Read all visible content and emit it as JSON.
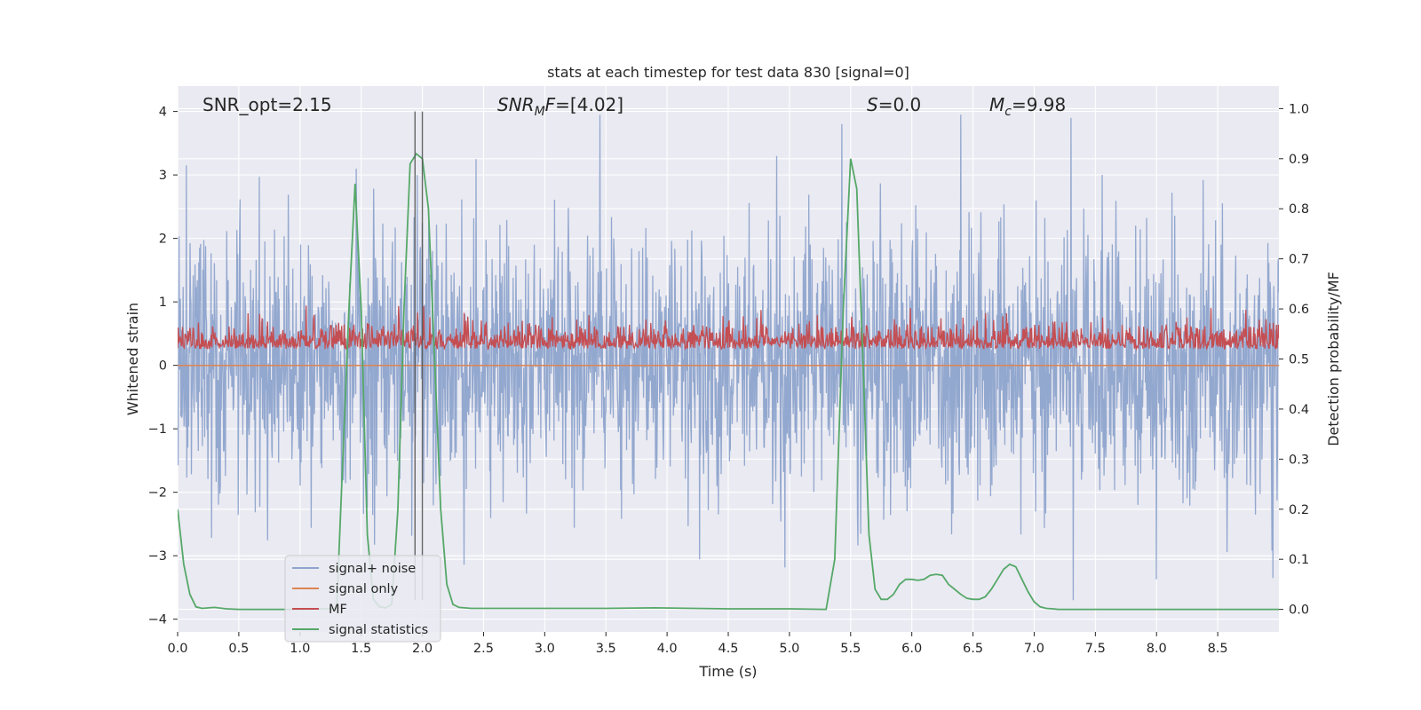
{
  "chart_data": {
    "type": "line",
    "title": "stats at each timestep for test data 830 [signal=0]",
    "xlabel": "Time (s)",
    "ylabel": "Whitened strain",
    "y2label": "Detection probability/MF",
    "xlim": [
      0.0,
      9.0
    ],
    "ylim": [
      -4.2,
      4.4
    ],
    "y2lim": [
      -0.045,
      1.045
    ],
    "x_ticks": [
      "0.0",
      "0.5",
      "1.0",
      "1.5",
      "2.0",
      "2.5",
      "3.0",
      "3.5",
      "4.0",
      "4.5",
      "5.0",
      "5.5",
      "6.0",
      "6.5",
      "7.0",
      "7.5",
      "8.0",
      "8.5"
    ],
    "y_ticks": [
      "−4",
      "−3",
      "−2",
      "−1",
      "0",
      "1",
      "2",
      "3",
      "4"
    ],
    "y2_ticks": [
      "0.0",
      "0.1",
      "0.2",
      "0.3",
      "0.4",
      "0.5",
      "0.6",
      "0.7",
      "0.8",
      "0.9",
      "1.0"
    ],
    "grid": true,
    "legend_position": "lower-left",
    "annotations": {
      "snr_opt": "SNR_opt=2.15",
      "snr_mf_base": "SNR",
      "snr_mf_sub": "M",
      "snr_mf_rest": "F=[4.02]",
      "s_var": "S",
      "s_val": "=0.0",
      "mc_var": "M",
      "mc_sub": "c",
      "mc_val": "=9.98"
    },
    "vertical_markers_x": [
      1.94,
      2.0
    ],
    "series": [
      {
        "name": "signal+ noise",
        "color": "#8ea4cc",
        "axis": "left",
        "description": "dense whitened strain noise, amplitude mostly within ±2.5",
        "peaks": [
          {
            "x": 0.07,
            "y": 3.15
          },
          {
            "x": 1.46,
            "y": 3.1
          },
          {
            "x": 1.96,
            "y": 3.0
          },
          {
            "x": 2.44,
            "y": 3.25
          },
          {
            "x": 3.45,
            "y": 3.95
          },
          {
            "x": 5.43,
            "y": 3.8
          },
          {
            "x": 6.4,
            "y": 3.95
          },
          {
            "x": 7.3,
            "y": 3.9
          },
          {
            "x": 7.32,
            "y": -3.7
          },
          {
            "x": 8.95,
            "y": -3.35
          }
        ]
      },
      {
        "name": "signal only",
        "color": "#dd8452",
        "axis": "left",
        "x": [
          0.0,
          9.0
        ],
        "y": [
          0.0,
          0.0
        ]
      },
      {
        "name": "MF",
        "color": "#c44e52",
        "axis": "right",
        "description": "matched filter output, fluctuating between about 0.5 and 0.62"
      },
      {
        "name": "signal statistics",
        "color": "#55a868",
        "axis": "right",
        "x": [
          0.0,
          0.05,
          0.1,
          0.15,
          0.2,
          0.3,
          0.4,
          0.5,
          1.0,
          1.3,
          1.4,
          1.45,
          1.5,
          1.55,
          1.6,
          1.65,
          1.7,
          1.75,
          1.8,
          1.85,
          1.9,
          1.95,
          2.0,
          2.05,
          2.1,
          2.15,
          2.2,
          2.25,
          2.3,
          2.4,
          3.0,
          3.5,
          3.9,
          4.5,
          5.0,
          5.3,
          5.37,
          5.44,
          5.5,
          5.55,
          5.6,
          5.65,
          5.7,
          5.75,
          5.8,
          5.85,
          5.9,
          5.95,
          6.0,
          6.05,
          6.1,
          6.15,
          6.2,
          6.25,
          6.3,
          6.35,
          6.4,
          6.45,
          6.5,
          6.55,
          6.6,
          6.65,
          6.7,
          6.75,
          6.8,
          6.85,
          6.9,
          6.95,
          7.0,
          7.05,
          7.1,
          7.15,
          7.2,
          7.3,
          8.0,
          9.0
        ],
        "y": [
          0.2,
          0.09,
          0.03,
          0.005,
          0.002,
          0.004,
          0.001,
          0.0,
          0.0,
          0.002,
          0.6,
          0.85,
          0.6,
          0.15,
          0.02,
          0.005,
          0.003,
          0.01,
          0.2,
          0.6,
          0.89,
          0.91,
          0.9,
          0.8,
          0.5,
          0.2,
          0.05,
          0.01,
          0.004,
          0.002,
          0.002,
          0.002,
          0.003,
          0.001,
          0.001,
          0.0,
          0.1,
          0.6,
          0.9,
          0.84,
          0.5,
          0.15,
          0.04,
          0.02,
          0.02,
          0.03,
          0.05,
          0.06,
          0.06,
          0.058,
          0.06,
          0.068,
          0.07,
          0.068,
          0.05,
          0.04,
          0.03,
          0.022,
          0.02,
          0.02,
          0.025,
          0.04,
          0.06,
          0.08,
          0.09,
          0.085,
          0.06,
          0.035,
          0.015,
          0.005,
          0.002,
          0.001,
          0.0,
          0.0,
          0.0,
          0.0
        ]
      }
    ]
  }
}
